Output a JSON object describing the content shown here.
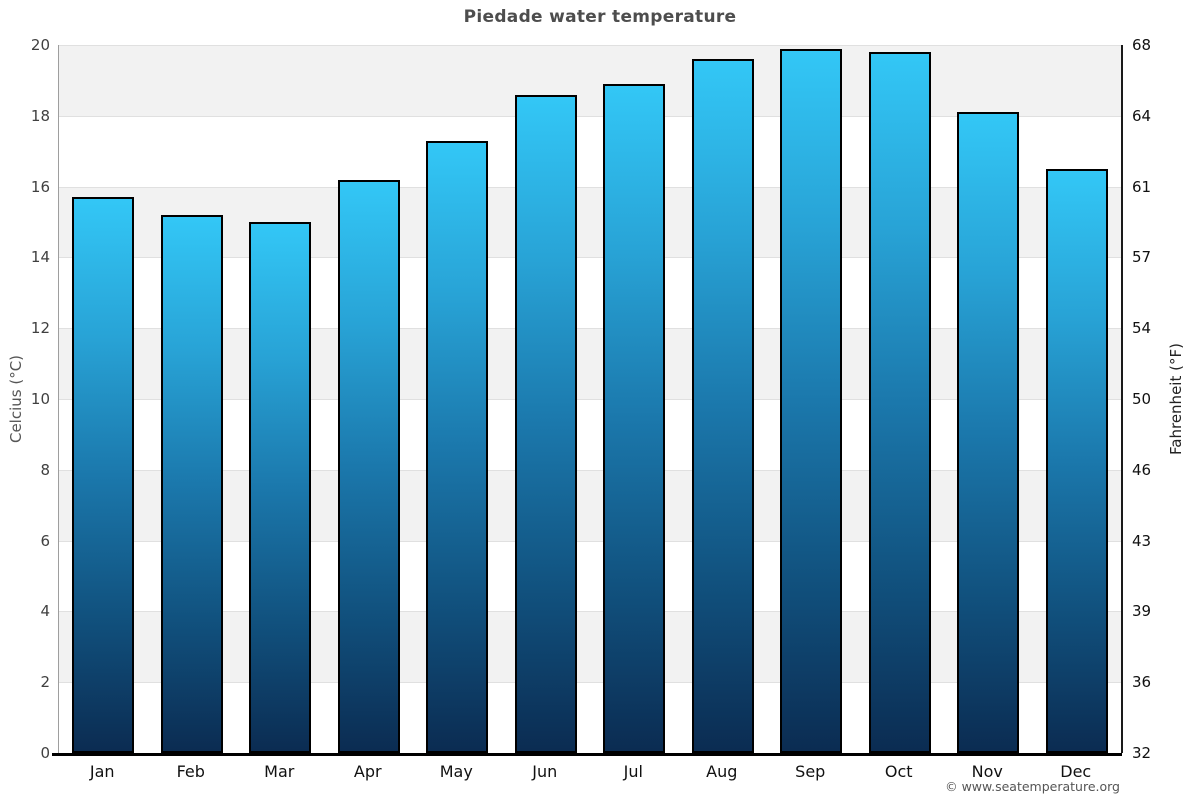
{
  "page": {
    "title": "Piedade water temperature",
    "footer": "© www.seatemperature.org"
  },
  "chart_data": {
    "type": "bar",
    "title": "Piedade water temperature",
    "categories": [
      "Jan",
      "Feb",
      "Mar",
      "Apr",
      "May",
      "Jun",
      "Jul",
      "Aug",
      "Sep",
      "Oct",
      "Nov",
      "Dec"
    ],
    "values": [
      15.7,
      15.2,
      15.0,
      16.2,
      17.3,
      18.6,
      18.9,
      19.6,
      19.9,
      19.8,
      18.1,
      16.5
    ],
    "series_name": "Water temperature",
    "unit": "°C",
    "ylabel_left": "Celcius (°C)",
    "ylabel_right": "Fahrenheit (°F)",
    "ylim_celsius": [
      0,
      20
    ],
    "yticks_celsius": [
      20,
      18,
      16,
      14,
      12,
      10,
      8,
      6,
      4,
      2,
      0
    ],
    "yticks_fahrenheit": [
      68,
      64,
      61,
      57,
      54,
      50,
      46,
      43,
      39,
      36,
      32
    ],
    "grid": "horizontal alternating bands, gray band between even tick pairs starting at top",
    "legend": "none",
    "colors": {
      "bar_gradient_top": "#33c7f6",
      "bar_gradient_bottom": "#0b2c52",
      "bar_border": "#000000",
      "band_gray": "#f2f2f2",
      "gridline": "#e0e0e0",
      "title_text": "#4d4d4d",
      "axis_bottom": "#000000",
      "axis_left": "#9e9e9e",
      "axis_right": "#1a1a1a"
    }
  }
}
